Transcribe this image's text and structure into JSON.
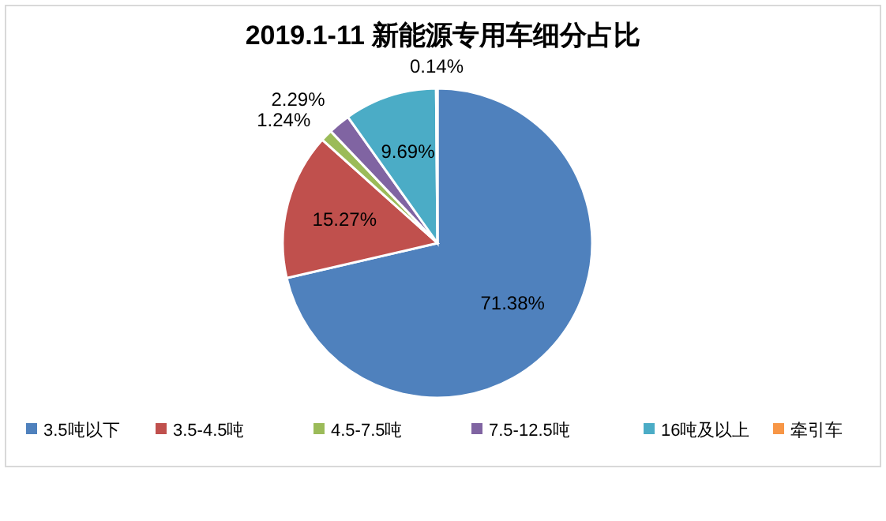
{
  "chart_data": {
    "type": "pie",
    "title": "2019.1-11 新能源专用车细分占比",
    "categories": [
      "3.5吨以下",
      "3.5-4.5吨",
      "4.5-7.5吨",
      "7.5-12.5吨",
      "16吨及以上",
      "牵引车"
    ],
    "values": [
      71.38,
      15.27,
      1.24,
      2.29,
      9.69,
      0.14
    ],
    "colors": [
      "#4f81bd",
      "#c0504d",
      "#9bbb59",
      "#8064a2",
      "#4bacc6",
      "#f79646"
    ],
    "value_labels": [
      "71.38%",
      "15.27%",
      "1.24%",
      "2.29%",
      "9.69%",
      "0.14%"
    ],
    "legend": "bottom"
  }
}
